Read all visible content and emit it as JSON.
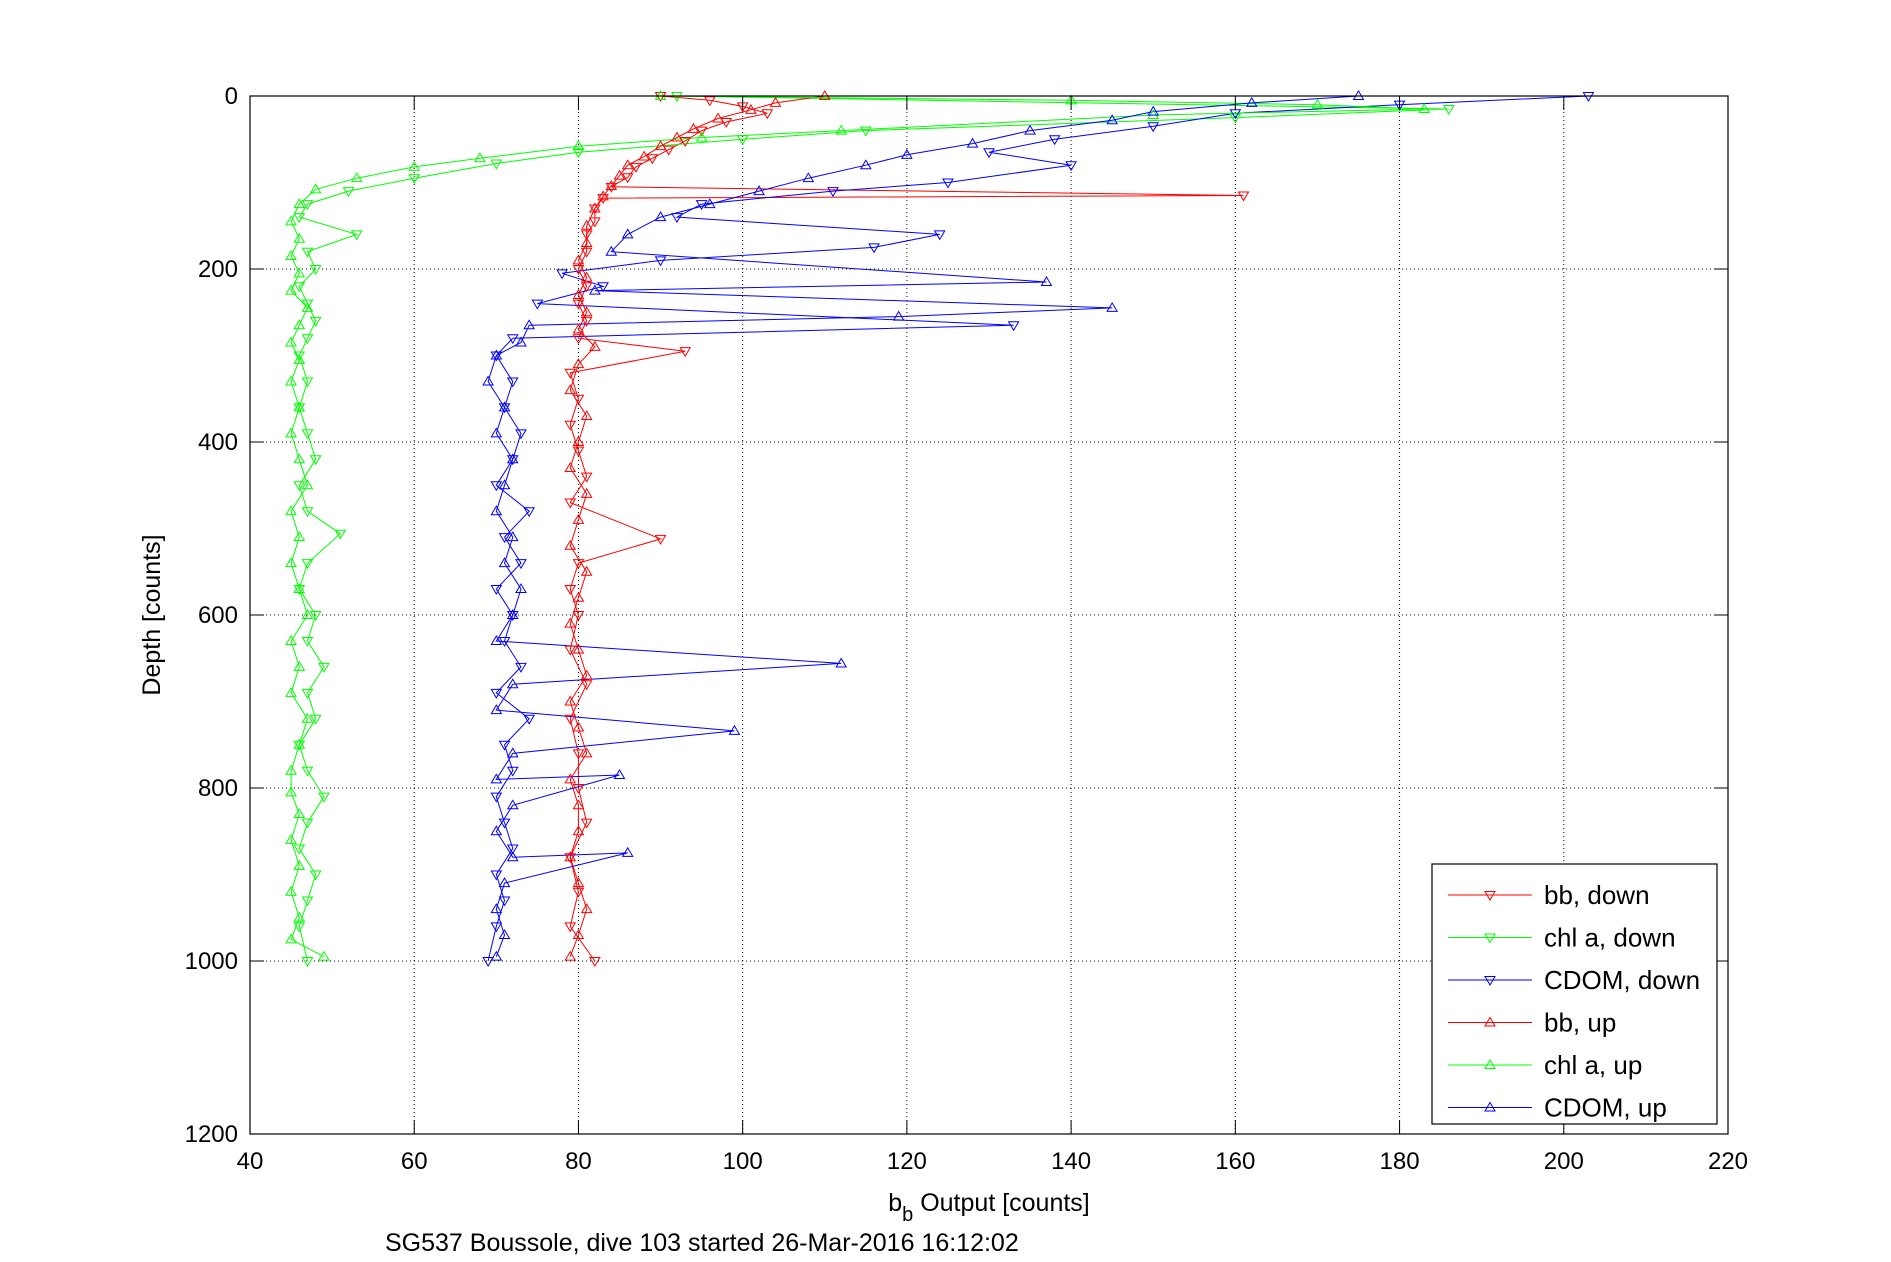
{
  "chart_data": {
    "type": "scatter",
    "xlabel": "b",
    "xlabel_sub": "b",
    "xlabel_rest": " Output [counts]",
    "ylabel": "Depth [counts]",
    "caption": "SG537 Boussole, dive 103 started 26-Mar-2016 16:12:02",
    "xlim": [
      40,
      220
    ],
    "ylim": [
      0,
      1200
    ],
    "y_reversed": true,
    "xticks": [
      40,
      60,
      80,
      100,
      120,
      140,
      160,
      180,
      200,
      220
    ],
    "yticks": [
      0,
      200,
      400,
      600,
      800,
      1000,
      1200
    ],
    "grid": true,
    "legend_position": "bottom-right",
    "colors": {
      "bb": "#ff0000",
      "chl": "#00ff00",
      "cdom": "#0000ff"
    },
    "series": [
      {
        "name": "bb, down",
        "color": "#ff0000",
        "marker": "triangle-down",
        "points": [
          [
            90,
            0
          ],
          [
            96,
            5
          ],
          [
            100,
            12
          ],
          [
            103,
            20
          ],
          [
            98,
            30
          ],
          [
            95,
            40
          ],
          [
            93,
            52
          ],
          [
            91,
            62
          ],
          [
            89,
            72
          ],
          [
            87,
            82
          ],
          [
            86,
            94
          ],
          [
            84,
            105
          ],
          [
            161,
            115
          ],
          [
            83,
            118
          ],
          [
            82,
            130
          ],
          [
            82,
            145
          ],
          [
            81,
            160
          ],
          [
            81,
            180
          ],
          [
            80,
            200
          ],
          [
            81,
            220
          ],
          [
            80,
            240
          ],
          [
            81,
            260
          ],
          [
            80,
            280
          ],
          [
            93,
            295
          ],
          [
            79,
            320
          ],
          [
            80,
            350
          ],
          [
            79,
            380
          ],
          [
            80,
            410
          ],
          [
            81,
            440
          ],
          [
            79,
            470
          ],
          [
            90,
            512
          ],
          [
            80,
            540
          ],
          [
            79,
            570
          ],
          [
            80,
            600
          ],
          [
            79,
            640
          ],
          [
            81,
            680
          ],
          [
            79,
            720
          ],
          [
            80,
            760
          ],
          [
            80,
            800
          ],
          [
            81,
            840
          ],
          [
            79,
            880
          ],
          [
            80,
            920
          ],
          [
            79,
            960
          ],
          [
            82,
            1000
          ]
        ]
      },
      {
        "name": "chl a, down",
        "color": "#00ff00",
        "marker": "triangle-down",
        "points": [
          [
            92,
            0
          ],
          [
            186,
            15
          ],
          [
            160,
            25
          ],
          [
            115,
            40
          ],
          [
            100,
            50
          ],
          [
            80,
            65
          ],
          [
            70,
            78
          ],
          [
            60,
            95
          ],
          [
            52,
            110
          ],
          [
            47,
            125
          ],
          [
            46,
            140
          ],
          [
            53,
            160
          ],
          [
            47,
            180
          ],
          [
            48,
            200
          ],
          [
            46,
            220
          ],
          [
            47,
            240
          ],
          [
            48,
            260
          ],
          [
            47,
            280
          ],
          [
            46,
            300
          ],
          [
            47,
            330
          ],
          [
            46,
            360
          ],
          [
            47,
            390
          ],
          [
            48,
            420
          ],
          [
            46,
            450
          ],
          [
            47,
            480
          ],
          [
            51,
            506
          ],
          [
            47,
            540
          ],
          [
            46,
            570
          ],
          [
            48,
            600
          ],
          [
            47,
            630
          ],
          [
            49,
            660
          ],
          [
            47,
            690
          ],
          [
            48,
            720
          ],
          [
            46,
            750
          ],
          [
            47,
            780
          ],
          [
            49,
            810
          ],
          [
            47,
            840
          ],
          [
            46,
            870
          ],
          [
            48,
            900
          ],
          [
            47,
            930
          ],
          [
            46,
            960
          ],
          [
            47,
            1000
          ]
        ]
      },
      {
        "name": "CDOM, down",
        "color": "#0000ff",
        "marker": "triangle-down",
        "points": [
          [
            203,
            0
          ],
          [
            180,
            10
          ],
          [
            160,
            20
          ],
          [
            150,
            35
          ],
          [
            138,
            50
          ],
          [
            130,
            65
          ],
          [
            140,
            80
          ],
          [
            125,
            100
          ],
          [
            111,
            110
          ],
          [
            95,
            125
          ],
          [
            92,
            140
          ],
          [
            124,
            160
          ],
          [
            116,
            175
          ],
          [
            90,
            190
          ],
          [
            78,
            205
          ],
          [
            83,
            220
          ],
          [
            75,
            240
          ],
          [
            133,
            265
          ],
          [
            72,
            280
          ],
          [
            70,
            300
          ],
          [
            72,
            330
          ],
          [
            71,
            360
          ],
          [
            73,
            390
          ],
          [
            72,
            420
          ],
          [
            70,
            450
          ],
          [
            74,
            480
          ],
          [
            71,
            510
          ],
          [
            73,
            540
          ],
          [
            70,
            570
          ],
          [
            72,
            600
          ],
          [
            71,
            630
          ],
          [
            73,
            660
          ],
          [
            70,
            690
          ],
          [
            74,
            720
          ],
          [
            71,
            750
          ],
          [
            72,
            780
          ],
          [
            70,
            810
          ],
          [
            71,
            840
          ],
          [
            72,
            870
          ],
          [
            70,
            900
          ],
          [
            71,
            930
          ],
          [
            70,
            960
          ],
          [
            69,
            1000
          ]
        ]
      },
      {
        "name": "bb, up",
        "color": "#ff0000",
        "marker": "triangle-up",
        "points": [
          [
            110,
            0
          ],
          [
            104,
            8
          ],
          [
            101,
            16
          ],
          [
            97,
            26
          ],
          [
            94,
            38
          ],
          [
            92,
            48
          ],
          [
            90,
            58
          ],
          [
            88,
            70
          ],
          [
            86,
            80
          ],
          [
            85,
            92
          ],
          [
            84,
            104
          ],
          [
            83,
            116
          ],
          [
            82,
            130
          ],
          [
            81,
            150
          ],
          [
            81,
            170
          ],
          [
            80,
            190
          ],
          [
            81,
            210
          ],
          [
            80,
            230
          ],
          [
            81,
            250
          ],
          [
            80,
            270
          ],
          [
            82,
            290
          ],
          [
            80,
            310
          ],
          [
            79,
            340
          ],
          [
            81,
            370
          ],
          [
            80,
            400
          ],
          [
            79,
            430
          ],
          [
            81,
            460
          ],
          [
            80,
            490
          ],
          [
            79,
            520
          ],
          [
            81,
            550
          ],
          [
            80,
            580
          ],
          [
            79,
            610
          ],
          [
            80,
            640
          ],
          [
            81,
            670
          ],
          [
            79,
            700
          ],
          [
            80,
            730
          ],
          [
            81,
            760
          ],
          [
            79,
            790
          ],
          [
            80,
            820
          ],
          [
            80,
            850
          ],
          [
            79,
            880
          ],
          [
            80,
            910
          ],
          [
            81,
            940
          ],
          [
            80,
            970
          ],
          [
            79,
            995
          ]
        ]
      },
      {
        "name": "chl a, up",
        "color": "#00ff00",
        "marker": "triangle-up",
        "points": [
          [
            90,
            0
          ],
          [
            140,
            5
          ],
          [
            170,
            10
          ],
          [
            183,
            15
          ],
          [
            150,
            22
          ],
          [
            112,
            40
          ],
          [
            95,
            48
          ],
          [
            80,
            58
          ],
          [
            68,
            72
          ],
          [
            60,
            82
          ],
          [
            53,
            95
          ],
          [
            48,
            108
          ],
          [
            46,
            125
          ],
          [
            45,
            145
          ],
          [
            46,
            165
          ],
          [
            45,
            185
          ],
          [
            46,
            205
          ],
          [
            45,
            225
          ],
          [
            47,
            245
          ],
          [
            46,
            265
          ],
          [
            45,
            285
          ],
          [
            46,
            305
          ],
          [
            45,
            330
          ],
          [
            46,
            360
          ],
          [
            45,
            390
          ],
          [
            46,
            420
          ],
          [
            47,
            450
          ],
          [
            45,
            480
          ],
          [
            46,
            510
          ],
          [
            45,
            540
          ],
          [
            46,
            570
          ],
          [
            47,
            600
          ],
          [
            45,
            630
          ],
          [
            46,
            660
          ],
          [
            45,
            690
          ],
          [
            47,
            720
          ],
          [
            46,
            750
          ],
          [
            45,
            780
          ],
          [
            45,
            805
          ],
          [
            46,
            830
          ],
          [
            45,
            860
          ],
          [
            46,
            890
          ],
          [
            45,
            920
          ],
          [
            46,
            950
          ],
          [
            45,
            975
          ],
          [
            49,
            995
          ]
        ]
      },
      {
        "name": "CDOM, up",
        "color": "#0000ff",
        "marker": "triangle-up",
        "points": [
          [
            175,
            0
          ],
          [
            162,
            8
          ],
          [
            150,
            18
          ],
          [
            145,
            28
          ],
          [
            135,
            40
          ],
          [
            128,
            55
          ],
          [
            120,
            68
          ],
          [
            115,
            80
          ],
          [
            108,
            95
          ],
          [
            102,
            110
          ],
          [
            96,
            125
          ],
          [
            90,
            140
          ],
          [
            86,
            160
          ],
          [
            84,
            180
          ],
          [
            137,
            215
          ],
          [
            82,
            225
          ],
          [
            145,
            245
          ],
          [
            119,
            255
          ],
          [
            74,
            265
          ],
          [
            73,
            285
          ],
          [
            70,
            300
          ],
          [
            69,
            330
          ],
          [
            71,
            360
          ],
          [
            70,
            390
          ],
          [
            72,
            420
          ],
          [
            71,
            450
          ],
          [
            70,
            480
          ],
          [
            72,
            510
          ],
          [
            71,
            540
          ],
          [
            73,
            570
          ],
          [
            72,
            600
          ],
          [
            70,
            630
          ],
          [
            112,
            656
          ],
          [
            72,
            680
          ],
          [
            70,
            710
          ],
          [
            99,
            734
          ],
          [
            72,
            760
          ],
          [
            70,
            790
          ],
          [
            85,
            785
          ],
          [
            72,
            820
          ],
          [
            70,
            850
          ],
          [
            72,
            880
          ],
          [
            86,
            875
          ],
          [
            71,
            910
          ],
          [
            70,
            940
          ],
          [
            71,
            970
          ],
          [
            70,
            995
          ]
        ]
      }
    ]
  }
}
